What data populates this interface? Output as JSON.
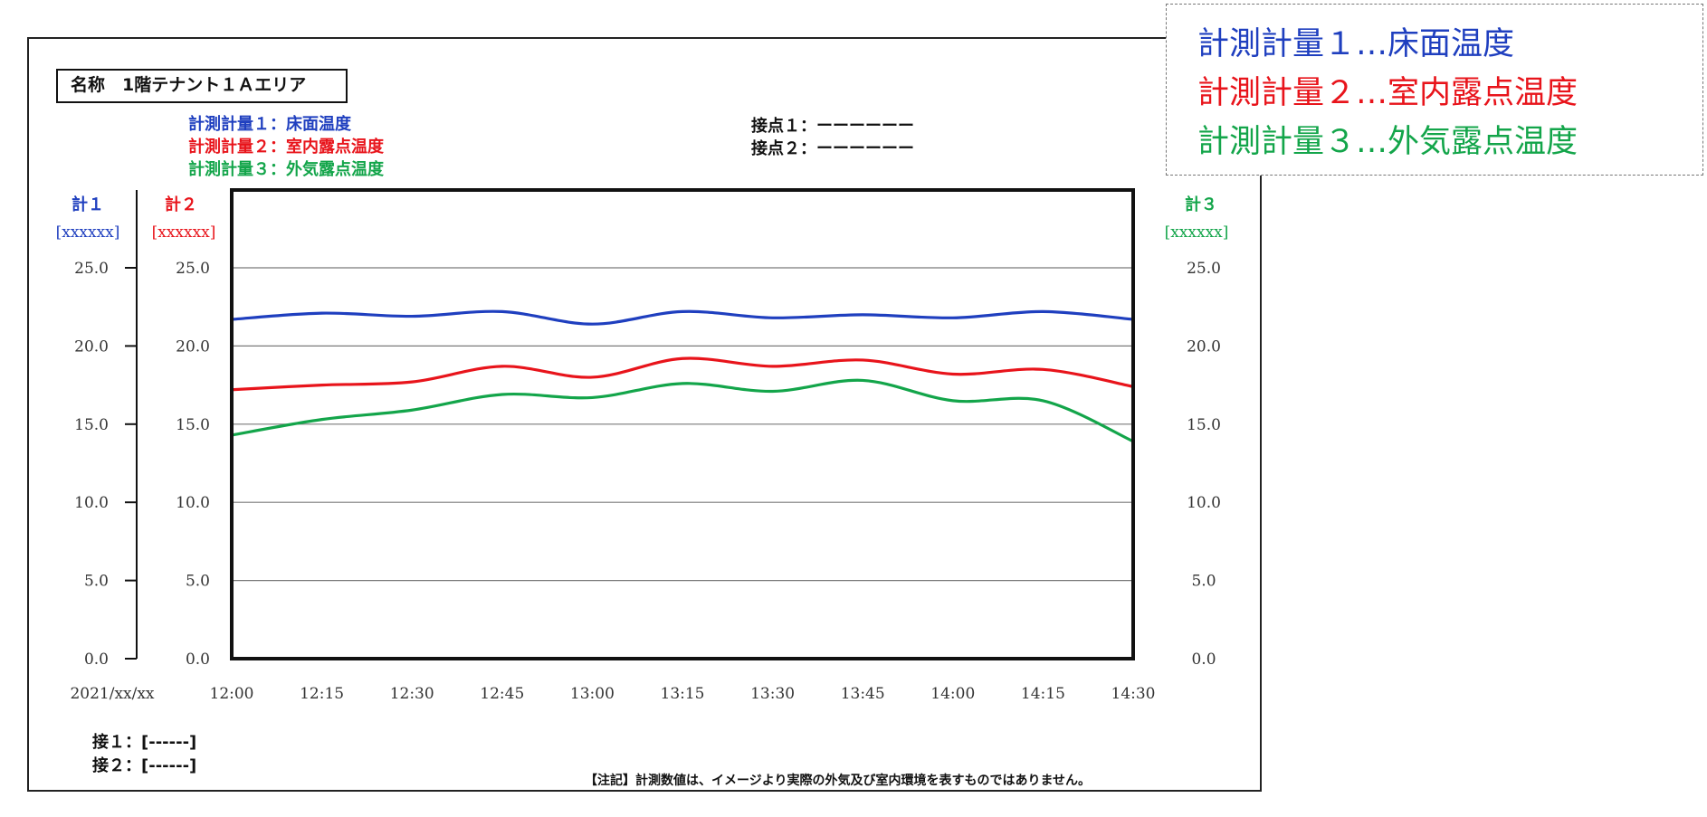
{
  "name_label": "名称　1階テナント１Ａエリア",
  "measurements": [
    {
      "label": "計測計量１：床面温度",
      "color": "#1f3fbf"
    },
    {
      "label": "計測計量２：室内露点温度",
      "color": "#e8141b"
    },
    {
      "label": "計測計量３：外気露点温度",
      "color": "#13a54a"
    }
  ],
  "contacts_top": [
    "接点１：ーーーーーー",
    "接点２：ーーーーーー"
  ],
  "contacts_bottom": [
    "接１：[------]",
    "接２：[------]"
  ],
  "note": "【注記】計測数値は、イメージより実際の外気及び室内環境を表すものではありません。",
  "legend": [
    {
      "text": "計測計量１…床面温度",
      "color": "#1f3fbf"
    },
    {
      "text": "計測計量２…室内露点温度",
      "color": "#e8141b"
    },
    {
      "text": "計測計量３…外気露点温度",
      "color": "#13a54a"
    }
  ],
  "chart_data": {
    "type": "line",
    "date_label": "2021/xx/xx",
    "axes": {
      "left1": {
        "title": "計１",
        "unit": "[xxxxxx]",
        "color": "#1f3fbf"
      },
      "left2": {
        "title": "計２",
        "unit": "[xxxxxx]",
        "color": "#e8141b"
      },
      "right3": {
        "title": "計３",
        "unit": "[xxxxxx]",
        "color": "#13a54a"
      }
    },
    "ylim": [
      0,
      25
    ],
    "yticks": [
      "25.0",
      "20.0",
      "15.0",
      "10.0",
      "5.0",
      "0.0"
    ],
    "x": [
      "12:00",
      "12:15",
      "12:30",
      "12:45",
      "13:00",
      "13:15",
      "13:30",
      "13:45",
      "14:00",
      "14:15",
      "14:30"
    ],
    "grid": true,
    "series": [
      {
        "name": "計測計量１：床面温度",
        "color": "#1f3fbf",
        "values": [
          21.7,
          22.1,
          21.9,
          22.2,
          21.4,
          22.2,
          21.8,
          22.0,
          21.8,
          22.2,
          21.7
        ]
      },
      {
        "name": "計測計量２：室内露点温度",
        "color": "#e8141b",
        "values": [
          17.2,
          17.5,
          17.7,
          18.7,
          18.0,
          19.2,
          18.7,
          19.1,
          18.2,
          18.5,
          17.4
        ]
      },
      {
        "name": "計測計量３：外気露点温度",
        "color": "#13a54a",
        "values": [
          14.3,
          15.3,
          15.9,
          16.9,
          16.7,
          17.6,
          17.1,
          17.8,
          16.5,
          16.5,
          13.9
        ]
      }
    ]
  }
}
